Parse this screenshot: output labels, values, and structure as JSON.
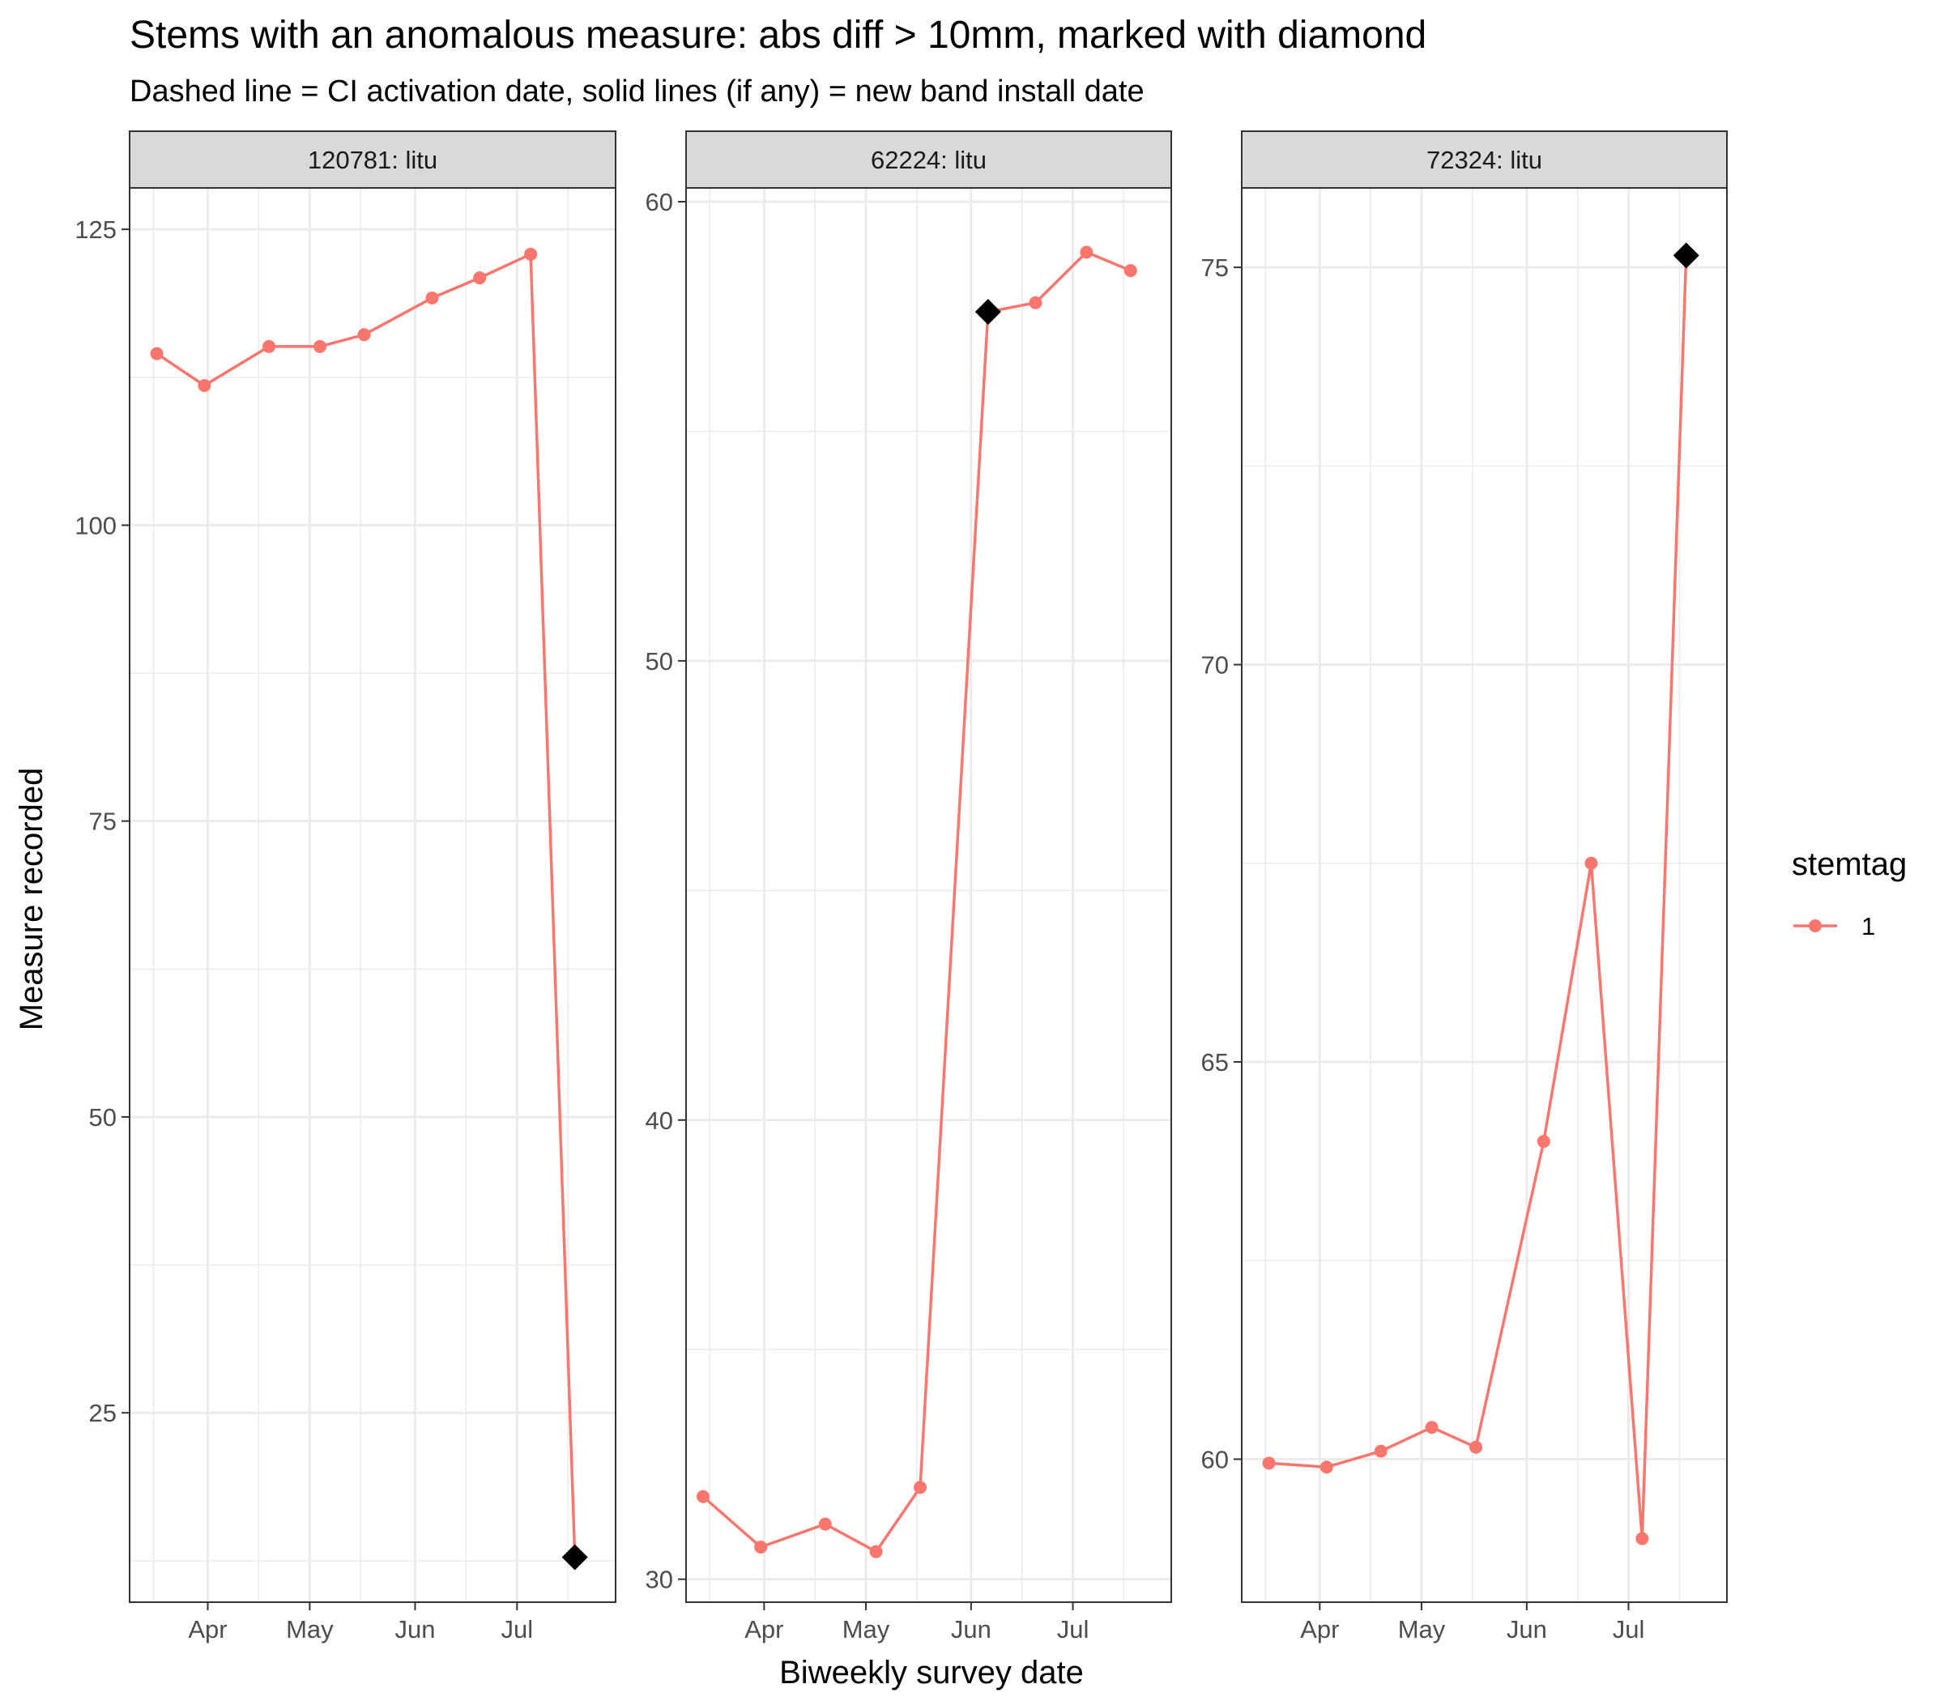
{
  "title": "Stems with an anomalous measure: abs diff > 10mm, marked with diamond",
  "subtitle": "Dashed line = CI activation date, solid lines (if any) = new band install date",
  "chart_data": {
    "type": "line",
    "xlabel": "Biweekly survey date",
    "ylabel": "Measure recorded",
    "x_ticks": [
      "Apr",
      "May",
      "Jun",
      "Jul"
    ],
    "x_tick_dates": [
      "2021-04-01",
      "2021-05-01",
      "2021-06-01",
      "2021-07-01"
    ],
    "xlim": [
      "2021-03-09",
      "2021-07-30"
    ],
    "grid": true,
    "series_color": "#F8766D",
    "anomaly_color": "#000000",
    "legend": {
      "title": "stemtag",
      "entries": [
        "1"
      ],
      "placement": "right"
    },
    "panels": [
      {
        "label": "120781: litu",
        "ylim": [
          9,
          128.5
        ],
        "y_ticks": [
          25,
          50,
          75,
          100,
          125
        ],
        "y_minor": [
          12.5,
          37.5,
          62.5,
          87.5,
          112.5
        ],
        "points": [
          {
            "x": "2021-03-17",
            "y": 114.5
          },
          {
            "x": "2021-03-31",
            "y": 111.8
          },
          {
            "x": "2021-04-19",
            "y": 115.1
          },
          {
            "x": "2021-05-04",
            "y": 115.1
          },
          {
            "x": "2021-05-17",
            "y": 116.1
          },
          {
            "x": "2021-06-06",
            "y": 119.2
          },
          {
            "x": "2021-06-20",
            "y": 120.9
          },
          {
            "x": "2021-07-05",
            "y": 122.9
          },
          {
            "x": "2021-07-18",
            "y": 12.8
          }
        ],
        "anomalies": [
          {
            "x": "2021-07-18",
            "y": 12.8
          }
        ]
      },
      {
        "label": "62224: litu",
        "ylim": [
          29.5,
          60.3
        ],
        "y_ticks": [
          30,
          40,
          50,
          60
        ],
        "y_minor": [
          35,
          45,
          55
        ],
        "points": [
          {
            "x": "2021-03-14",
            "y": 31.8
          },
          {
            "x": "2021-03-31",
            "y": 30.7
          },
          {
            "x": "2021-04-19",
            "y": 31.2
          },
          {
            "x": "2021-05-04",
            "y": 30.6
          },
          {
            "x": "2021-05-17",
            "y": 32.0
          },
          {
            "x": "2021-06-06",
            "y": 57.6
          },
          {
            "x": "2021-06-20",
            "y": 57.8
          },
          {
            "x": "2021-07-05",
            "y": 58.9
          },
          {
            "x": "2021-07-18",
            "y": 58.5
          }
        ],
        "anomalies": [
          {
            "x": "2021-06-06",
            "y": 57.6
          }
        ]
      },
      {
        "label": "72324: litu",
        "ylim": [
          58.2,
          76.0
        ],
        "y_ticks": [
          60,
          65,
          70,
          75
        ],
        "y_minor": [
          62.5,
          67.5,
          72.5
        ],
        "points": [
          {
            "x": "2021-03-17",
            "y": 59.95
          },
          {
            "x": "2021-04-03",
            "y": 59.9
          },
          {
            "x": "2021-04-19",
            "y": 60.1
          },
          {
            "x": "2021-05-04",
            "y": 60.4
          },
          {
            "x": "2021-05-17",
            "y": 60.15
          },
          {
            "x": "2021-06-06",
            "y": 64.0
          },
          {
            "x": "2021-06-20",
            "y": 67.5
          },
          {
            "x": "2021-07-05",
            "y": 59.0
          },
          {
            "x": "2021-07-18",
            "y": 75.15
          }
        ],
        "anomalies": [
          {
            "x": "2021-07-18",
            "y": 75.15
          }
        ]
      }
    ]
  }
}
